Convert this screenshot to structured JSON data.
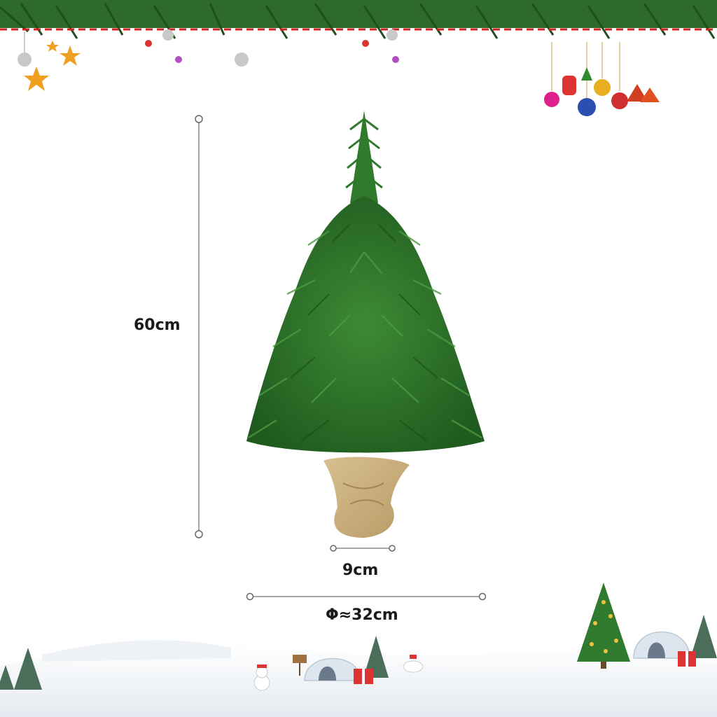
{
  "product": {
    "name": "mini-christmas-tree",
    "base": "burlap-sack"
  },
  "dimensions": {
    "height_label": "60cm",
    "base_width_label": "9cm",
    "diameter_label": "Φ≈32cm"
  },
  "decor": {
    "top_border": "pine-garland-with-ornaments",
    "bottom_scene": "snowy-landscape-with-igloos",
    "colors": {
      "tree_green": "#2f7a2c",
      "tree_dark": "#1f5a1f",
      "burlap": "#c9ae7e",
      "measure_line": "#888888"
    }
  }
}
